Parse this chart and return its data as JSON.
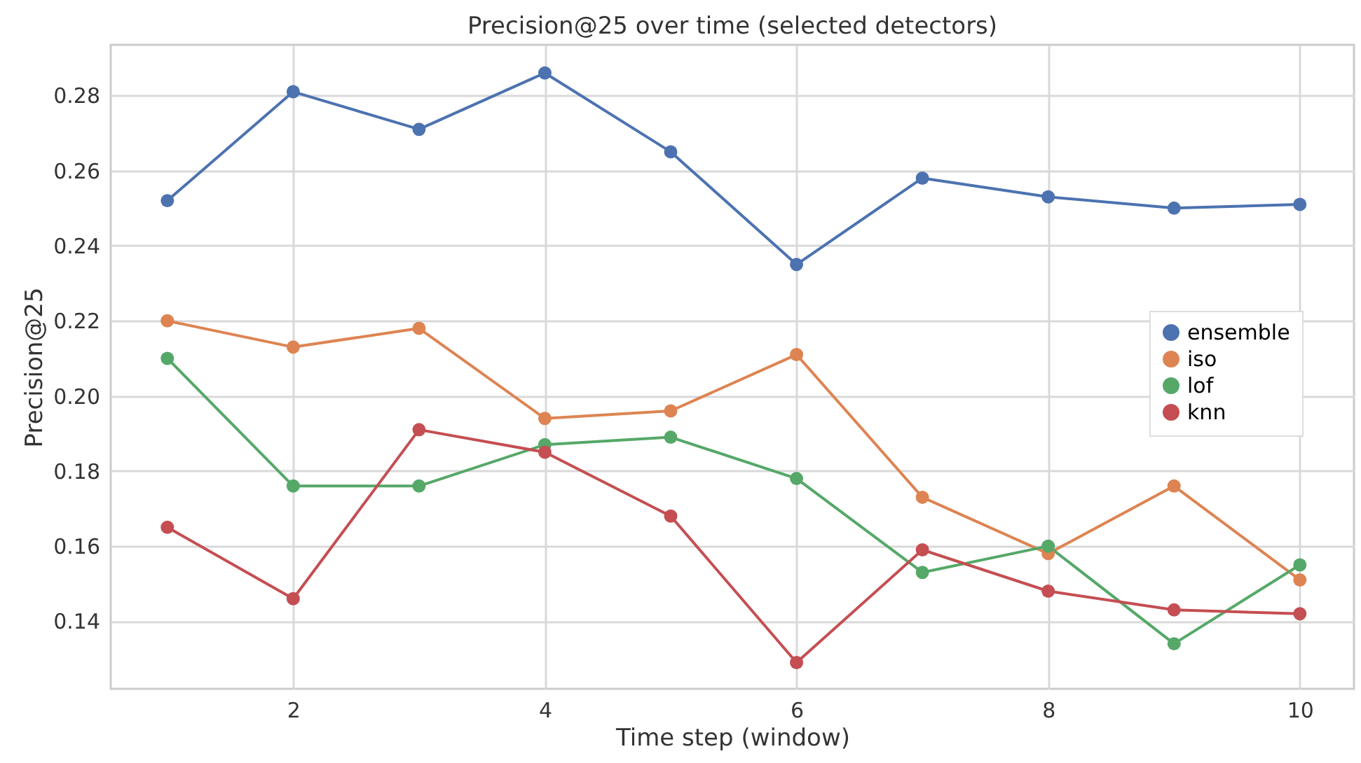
{
  "chart_data": {
    "type": "line",
    "title": "Precision@25 over time (selected detectors)",
    "xlabel": "Time step (window)",
    "ylabel": "Precision@25",
    "x": [
      1,
      2,
      3,
      4,
      5,
      6,
      7,
      8,
      9,
      10
    ],
    "series": [
      {
        "name": "ensemble",
        "color": "#4c72b0",
        "values": [
          0.252,
          0.281,
          0.271,
          0.286,
          0.265,
          0.235,
          0.258,
          0.253,
          0.25,
          0.251
        ]
      },
      {
        "name": "iso",
        "color": "#dd8452",
        "values": [
          0.22,
          0.213,
          0.218,
          0.194,
          0.196,
          0.211,
          0.173,
          0.158,
          0.176,
          0.151
        ]
      },
      {
        "name": "lof",
        "color": "#55a868",
        "values": [
          0.21,
          0.176,
          0.176,
          0.187,
          0.189,
          0.178,
          0.153,
          0.16,
          0.134,
          0.155
        ]
      },
      {
        "name": "knn",
        "color": "#c44e52",
        "values": [
          0.165,
          0.146,
          0.191,
          0.185,
          0.168,
          0.129,
          0.159,
          0.148,
          0.143,
          0.142
        ]
      }
    ],
    "xlim": [
      0.55,
      10.43
    ],
    "xticks": [
      2,
      4,
      6,
      8,
      10
    ],
    "ylim": [
      0.122,
      0.2935
    ],
    "yticks": [
      0.14,
      0.16,
      0.18,
      {
        "value": 0.2,
        "label": "0.20"
      },
      0.22,
      0.24,
      0.26,
      0.28
    ],
    "grid": true,
    "legend": "right",
    "marker": "circle",
    "line_style": "solid"
  }
}
